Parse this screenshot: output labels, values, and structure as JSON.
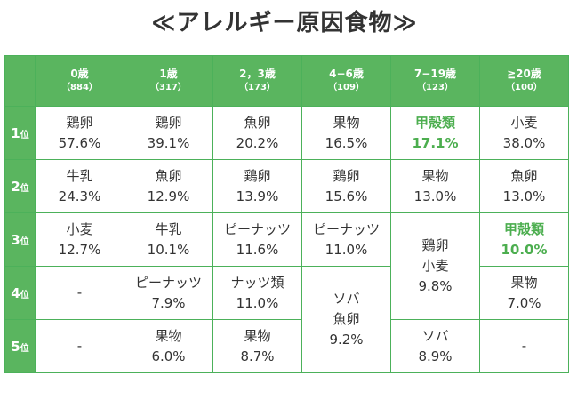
{
  "title": "≪アレルギー原因食物≫",
  "colors": {
    "accent": "#5ab55f",
    "highlight": "#4cae4f"
  },
  "headers": [
    {
      "age": "0歳",
      "n": "（884）"
    },
    {
      "age": "1歳",
      "n": "（317）"
    },
    {
      "age": "2，3歳",
      "n": "（173）"
    },
    {
      "age": "4−6歳",
      "n": "（109）"
    },
    {
      "age": "7−19歳",
      "n": "（123）"
    },
    {
      "age": "≧20歳",
      "n": "（100）"
    }
  ],
  "ranks": [
    {
      "num": "1",
      "suffix": "位"
    },
    {
      "num": "2",
      "suffix": "位"
    },
    {
      "num": "3",
      "suffix": "位"
    },
    {
      "num": "4",
      "suffix": "位"
    },
    {
      "num": "5",
      "suffix": "位"
    }
  ],
  "cells": {
    "r1": [
      {
        "food": "鶏卵",
        "pct": "57.6%"
      },
      {
        "food": "鶏卵",
        "pct": "39.1%"
      },
      {
        "food": "魚卵",
        "pct": "20.2%"
      },
      {
        "food": "果物",
        "pct": "16.5%"
      },
      {
        "food": "甲殻類",
        "pct": "17.1%"
      },
      {
        "food": "小麦",
        "pct": "38.0%"
      }
    ],
    "r2": [
      {
        "food": "牛乳",
        "pct": "24.3%"
      },
      {
        "food": "魚卵",
        "pct": "12.9%"
      },
      {
        "food": "鶏卵",
        "pct": "13.9%"
      },
      {
        "food": "鶏卵",
        "pct": "15.6%"
      },
      {
        "food": "果物",
        "pct": "13.0%"
      },
      {
        "food": "魚卵",
        "pct": "13.0%"
      }
    ],
    "r3": [
      {
        "food": "小麦",
        "pct": "12.7%"
      },
      {
        "food": "牛乳",
        "pct": "10.1%"
      },
      {
        "food": "ピーナッツ",
        "pct": "11.6%"
      },
      {
        "food": "ピーナッツ",
        "pct": "11.0%"
      },
      {
        "food": "甲殻類",
        "pct": "10.0%"
      }
    ],
    "merged_7_19_r3_4": {
      "food1": "鶏卵",
      "food2": "小麦",
      "pct": "9.8%"
    },
    "r4": [
      {
        "dash": "-"
      },
      {
        "food": "ピーナッツ",
        "pct": "7.9%"
      },
      {
        "food": "ナッツ類",
        "pct": "11.0%"
      },
      {
        "food": "果物",
        "pct": "7.0%"
      }
    ],
    "merged_4_6_r4_5": {
      "food1": "ソバ",
      "food2": "魚卵",
      "pct": "9.2%"
    },
    "r5": [
      {
        "dash": "-"
      },
      {
        "food": "果物",
        "pct": "6.0%"
      },
      {
        "food": "果物",
        "pct": "8.7%"
      },
      {
        "food": "ソバ",
        "pct": "8.9%"
      },
      {
        "dash": "-"
      }
    ]
  }
}
